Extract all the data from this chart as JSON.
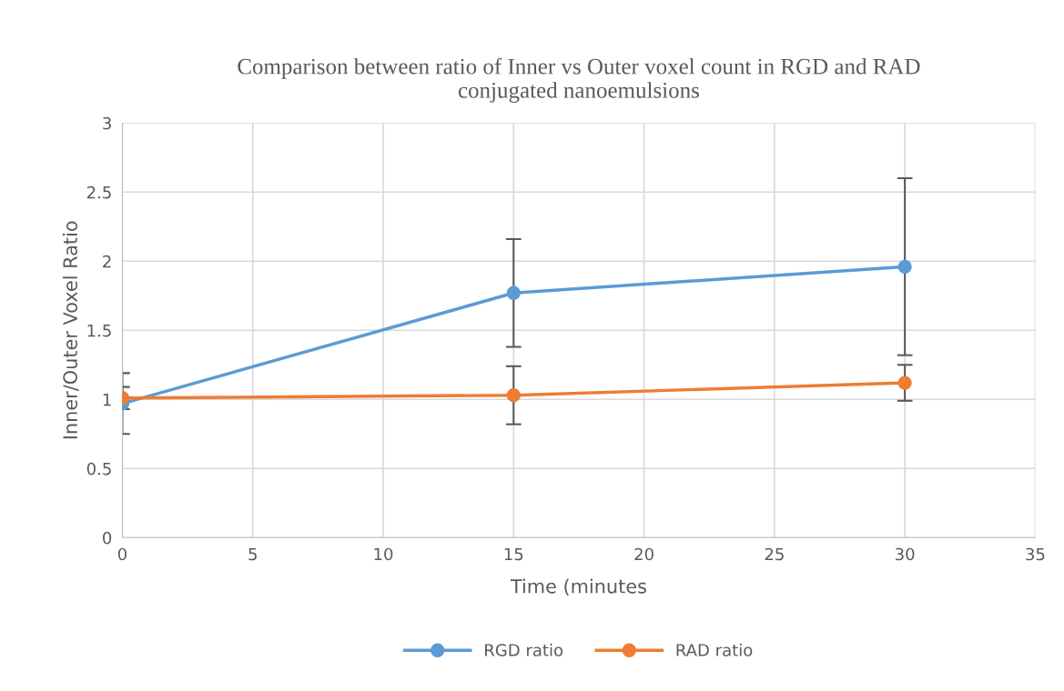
{
  "chart_data": {
    "type": "line",
    "title": "Comparison between ratio of Inner vs Outer voxel count in RGD and RAD\nconjugated nanoemulsions",
    "xlabel": "Time (minutes",
    "ylabel": "Inner/Outer Voxel Ratio",
    "x": [
      0,
      15,
      30
    ],
    "series": [
      {
        "name": "RGD ratio",
        "color": "#5b9bd5",
        "values": [
          0.97,
          1.77,
          1.96
        ],
        "errors": [
          0.22,
          0.39,
          0.64
        ]
      },
      {
        "name": "RAD ratio",
        "color": "#ed7d31",
        "values": [
          1.01,
          1.03,
          1.12
        ],
        "errors": [
          0.08,
          0.21,
          0.13
        ]
      }
    ],
    "xlim": [
      0,
      35
    ],
    "xticks": [
      0,
      5,
      10,
      15,
      20,
      25,
      30,
      35
    ],
    "ylim": [
      0,
      3
    ],
    "yticks": [
      0,
      0.5,
      1,
      1.5,
      2,
      2.5,
      3
    ],
    "grid": true,
    "legend": "bottom",
    "marker": "circle",
    "line_style": "solid"
  }
}
